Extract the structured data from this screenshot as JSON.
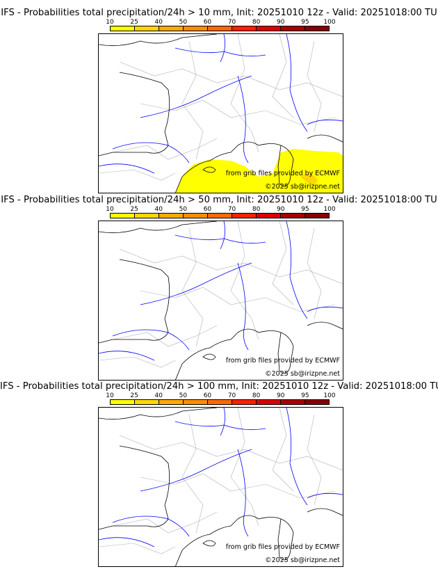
{
  "panels": [
    {
      "title": "IFS - Probabilities total precipitation/24h > 10 mm, Init: 20251010 12z - Valid: 20251018:00 TU",
      "has_precip": true
    },
    {
      "title": "IFS - Probabilities total precipitation/24h > 50 mm, Init: 20251010 12z - Valid: 20251018:00 TU",
      "has_precip": false
    },
    {
      "title": "IFS - Probabilities total precipitation/24h > 100 mm, Init: 20251010 12z - Valid: 20251018:00 TU",
      "has_precip": false
    }
  ],
  "colorbar": {
    "ticks": [
      "10",
      "25",
      "40",
      "50",
      "60",
      "70",
      "80",
      "90",
      "95",
      "100"
    ],
    "colors": [
      "#ffff00",
      "#ffd700",
      "#ffaa00",
      "#ff8c00",
      "#ff6a00",
      "#ff2000",
      "#dd0000",
      "#a80000",
      "#880000",
      "#600000"
    ]
  },
  "credits": {
    "source": "from grib files provided by ECMWF",
    "copyright": "©2025 sb@irizpne.net"
  },
  "map_colors": {
    "coast": "#000000",
    "rivers": "#0000ff",
    "borders": "#b0b0b0",
    "precip": "#ffff00"
  }
}
